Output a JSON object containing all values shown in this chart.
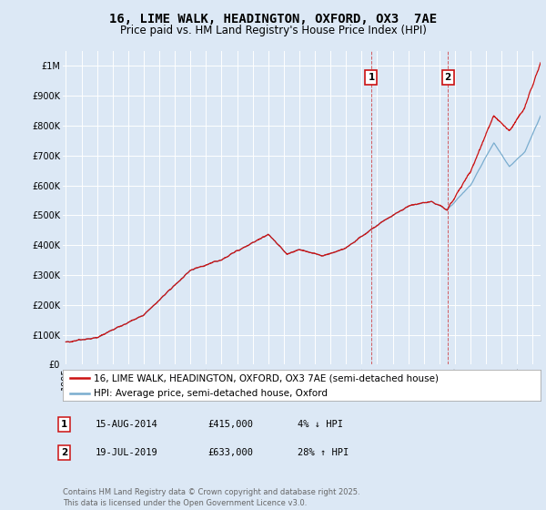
{
  "title": "16, LIME WALK, HEADINGTON, OXFORD, OX3  7AE",
  "subtitle": "Price paid vs. HM Land Registry's House Price Index (HPI)",
  "ylabel_ticks": [
    "£0",
    "£100K",
    "£200K",
    "£300K",
    "£400K",
    "£500K",
    "£600K",
    "£700K",
    "£800K",
    "£900K",
    "£1M"
  ],
  "ytick_values": [
    0,
    100000,
    200000,
    300000,
    400000,
    500000,
    600000,
    700000,
    800000,
    900000,
    1000000
  ],
  "ylim": [
    0,
    1050000
  ],
  "xlim_start": 1994.8,
  "xlim_end": 2025.5,
  "sale1_x": 2014.62,
  "sale1_y": 415000,
  "sale1_label": "1",
  "sale2_x": 2019.55,
  "sale2_y": 633000,
  "sale2_label": "2",
  "vline1_x": 2014.62,
  "vline2_x": 2019.55,
  "hpi_color": "#7aadcf",
  "property_color": "#cc1111",
  "vline_color": "#cc1111",
  "background_color": "#dce8f5",
  "plot_bg_color": "#dce8f5",
  "grid_color": "#ffffff",
  "legend_label_property": "16, LIME WALK, HEADINGTON, OXFORD, OX3 7AE (semi-detached house)",
  "legend_label_hpi": "HPI: Average price, semi-detached house, Oxford",
  "table_row1": [
    "1",
    "15-AUG-2014",
    "£415,000",
    "4% ↓ HPI"
  ],
  "table_row2": [
    "2",
    "19-JUL-2019",
    "£633,000",
    "28% ↑ HPI"
  ],
  "footnote": "Contains HM Land Registry data © Crown copyright and database right 2025.\nThis data is licensed under the Open Government Licence v3.0.",
  "title_fontsize": 10,
  "subtitle_fontsize": 8.5,
  "tick_fontsize": 7,
  "legend_fontsize": 7.5,
  "table_fontsize": 7.5,
  "footnote_fontsize": 6
}
